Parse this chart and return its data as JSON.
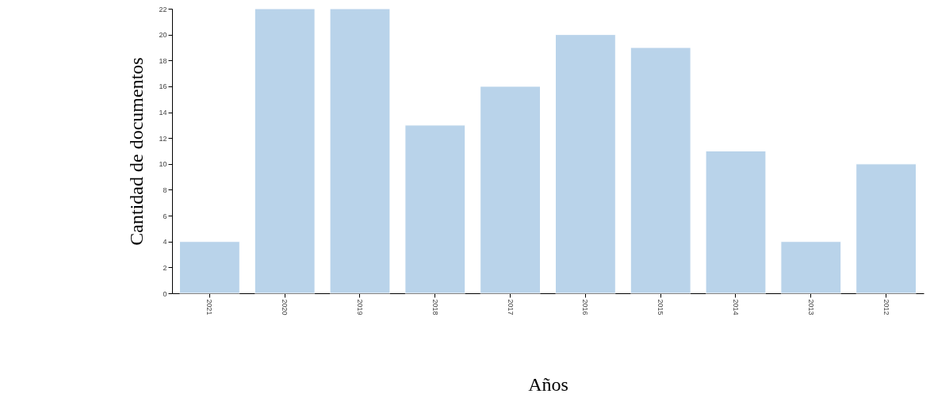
{
  "chart_data": {
    "type": "bar",
    "xlabel": "Años",
    "ylabel": "Cantidad de documentos",
    "categories": [
      "2021",
      "2020",
      "2019",
      "2018",
      "2017",
      "2016",
      "2015",
      "2014",
      "2013",
      "2012"
    ],
    "values": [
      4,
      22,
      22,
      13,
      16,
      20,
      19,
      11,
      4,
      10
    ],
    "color": "#b9d3ea",
    "ylim": [
      0,
      22
    ],
    "yticks": [
      0,
      2,
      4,
      6,
      8,
      10,
      12,
      14,
      16,
      18,
      20,
      22
    ],
    "grid": false
  }
}
